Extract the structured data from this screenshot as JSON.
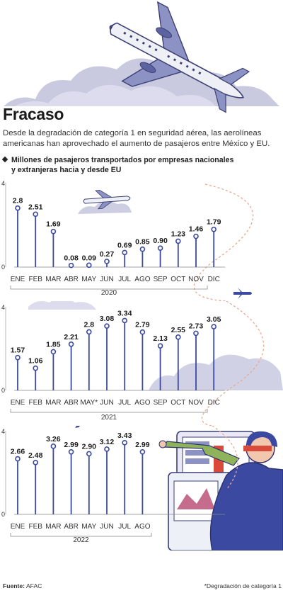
{
  "header": {
    "title": "Fracaso",
    "subtitle": "Desde la degradación de categoría 1 en seguridad aérea, las aerolíneas americanas han aprovechado el aumento de pasajeros entre México y EU.",
    "legend_line1": "Millones de pasajeros transportados por empresas nacionales",
    "legend_line2": "y extranjeras hacia y desde EU"
  },
  "colors": {
    "stem": "#3b4aa0",
    "bubble": "#ffffff",
    "axis": "#888888",
    "cloud": "#c9c9e0",
    "dash": "#e7a98f"
  },
  "icons": [
    "airplane-icon",
    "cloud-icon",
    "air-traffic-controller-icon",
    "diamond-bullet-icon"
  ],
  "chart_data": [
    {
      "type": "lollipop",
      "year_label": "2020",
      "categories": [
        "ENE",
        "FEB",
        "MAR",
        "ABR",
        "MAY",
        "JUN",
        "JUL",
        "AGO",
        "SEP",
        "OCT",
        "NOV",
        "DIC"
      ],
      "values": [
        2.8,
        2.51,
        1.69,
        0.08,
        0.09,
        0.27,
        0.69,
        0.85,
        0.9,
        1.23,
        1.46,
        1.79
      ],
      "value_labels": [
        "2.8",
        "2.51",
        "1.69",
        "0.08",
        "0.09",
        "0.27",
        "0.69",
        "0.85",
        "0.90",
        "1.23",
        "1.46",
        "1.79"
      ],
      "ylim": [
        0,
        4
      ],
      "yticks": [
        "0",
        "4"
      ]
    },
    {
      "type": "lollipop",
      "year_label": "2021",
      "categories": [
        "ENE",
        "FEB",
        "MAR",
        "ABR",
        "MAY*",
        "JUN",
        "JUL",
        "AGO",
        "SEP",
        "OCT",
        "NOV",
        "DIC"
      ],
      "values": [
        1.57,
        1.06,
        1.85,
        2.21,
        2.8,
        3.08,
        3.34,
        2.79,
        2.13,
        2.55,
        2.73,
        3.05
      ],
      "value_labels": [
        "1.57",
        "1.06",
        "1.85",
        "2.21",
        "2.8",
        "3.08",
        "3.34",
        "2.79",
        "2.13",
        "2.55",
        "2.73",
        "3.05"
      ],
      "ylim": [
        0,
        4
      ],
      "yticks": [
        "0",
        "4"
      ]
    },
    {
      "type": "lollipop",
      "year_label": "2022",
      "categories": [
        "ENE",
        "FEB",
        "MAR",
        "ABR",
        "MAY",
        "JUN",
        "JUL",
        "AGO"
      ],
      "values": [
        2.66,
        2.48,
        3.26,
        2.99,
        2.9,
        3.12,
        3.43,
        2.99
      ],
      "value_labels": [
        "2.66",
        "2.48",
        "3.26",
        "2.99",
        "2.90",
        "3.12",
        "3.43",
        "2.99"
      ],
      "ylim": [
        0,
        4
      ],
      "yticks": [
        "0",
        "4"
      ]
    }
  ],
  "footer": {
    "source_label": "Fuente:",
    "source_value": "AFAC",
    "note": "*Degradación de categoría 1"
  }
}
